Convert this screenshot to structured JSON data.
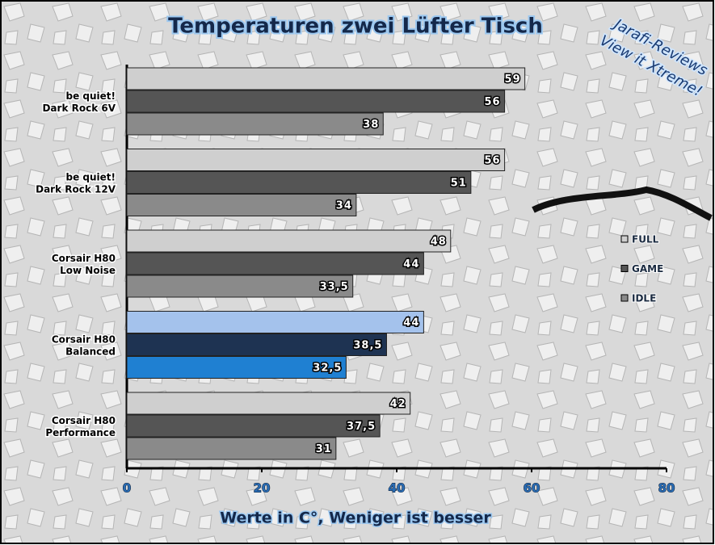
{
  "chart_data": {
    "type": "bar",
    "orientation": "horizontal",
    "title": "Temperaturen zwei Lüfter Tisch",
    "x_label": "Werte in C°, Weniger ist besser",
    "annotations": [
      "Jarafi-Reviews",
      "View it Xtreme!"
    ],
    "categories": [
      [
        "be quiet!",
        "Dark Rock 6V"
      ],
      [
        "be quiet!",
        "Dark Rock 12V"
      ],
      [
        "Corsair H80",
        "Low Noise"
      ],
      [
        "Corsair H80",
        "Balanced"
      ],
      [
        "Corsair H80",
        "Performance"
      ]
    ],
    "series": [
      {
        "name": "FULL",
        "color": "#cfcfcf",
        "point_colors": [
          "#cfcfcf",
          "#cfcfcf",
          "#cfcfcf",
          "#a4c2ec",
          "#cfcfcf"
        ],
        "values": [
          59,
          56,
          48,
          44,
          42
        ],
        "value_labels": [
          "59",
          "56",
          "48",
          "44",
          "42"
        ]
      },
      {
        "name": "GAME",
        "color": "#555555",
        "point_colors": [
          "#555555",
          "#555555",
          "#555555",
          "#1e3352",
          "#555555"
        ],
        "values": [
          56,
          51,
          44,
          38.5,
          37.5
        ],
        "value_labels": [
          "56",
          "51",
          "44",
          "38,5",
          "37,5"
        ]
      },
      {
        "name": "IDLE",
        "color": "#8a8a8a",
        "point_colors": [
          "#8a8a8a",
          "#8a8a8a",
          "#8a8a8a",
          "#1f80d2",
          "#8a8a8a"
        ],
        "values": [
          38,
          34,
          33.5,
          32.5,
          31
        ],
        "value_labels": [
          "38",
          "34",
          "33,5",
          "32,5",
          "31"
        ]
      }
    ],
    "xlim": [
      0,
      80
    ],
    "xticks": [
      0,
      20,
      40,
      60,
      80
    ],
    "grid": false,
    "legend": "right"
  }
}
